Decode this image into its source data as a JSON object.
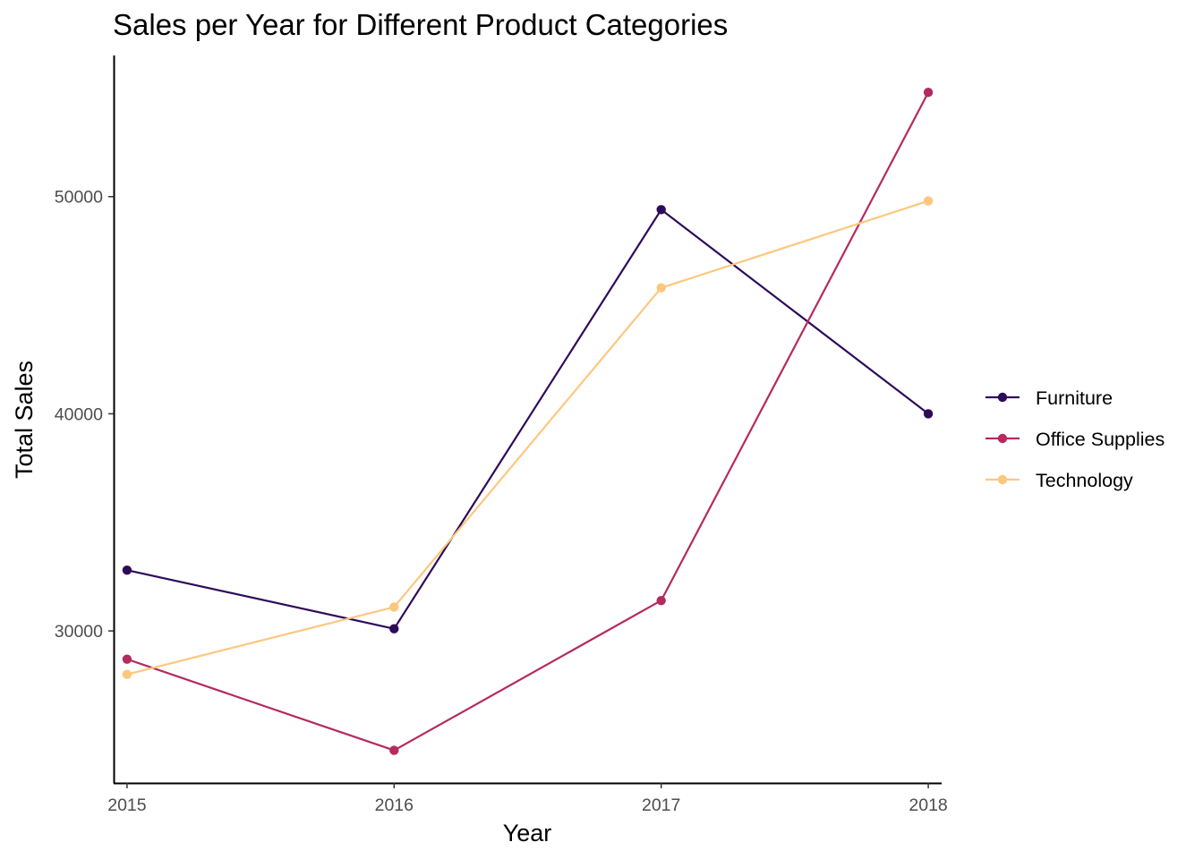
{
  "chart_data": {
    "type": "line",
    "title": "Sales per Year for Different Product Categories",
    "xlabel": "Year",
    "ylabel": "Total Sales",
    "x": [
      2015,
      2016,
      2017,
      2018
    ],
    "x_tick_labels": [
      "2015",
      "2016",
      "2017",
      "2018"
    ],
    "y_ticks": [
      30000,
      40000,
      50000
    ],
    "y_tick_labels": [
      "30000",
      "40000",
      "50000"
    ],
    "xlim": [
      2014.95,
      2018.05
    ],
    "ylim": [
      23000,
      56500
    ],
    "grid": false,
    "legend_position": "right",
    "series": [
      {
        "name": "Furniture",
        "color": "#2d0b59",
        "values": [
          32800,
          30100,
          49400,
          40000
        ]
      },
      {
        "name": "Office Supplies",
        "color": "#b52a5f",
        "values": [
          28700,
          24500,
          31400,
          54800
        ]
      },
      {
        "name": "Technology",
        "color": "#fdc77e",
        "values": [
          28000,
          31100,
          45800,
          49800
        ]
      }
    ]
  }
}
